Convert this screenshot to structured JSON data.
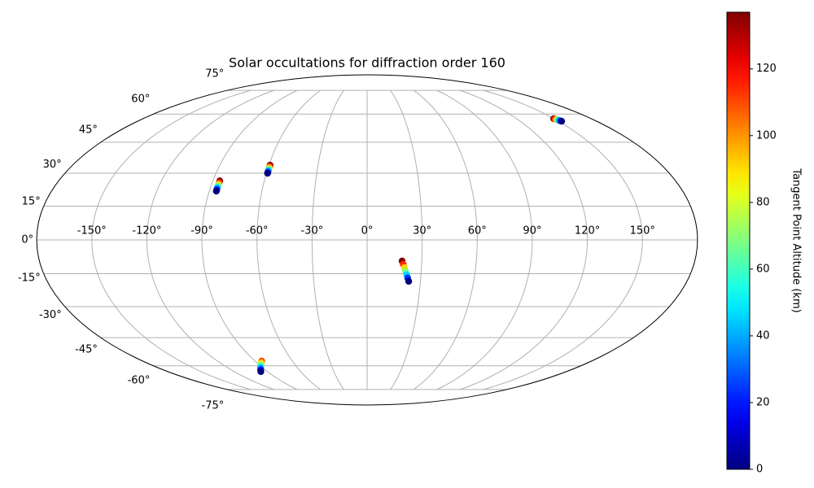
{
  "chart_data": {
    "type": "scatter",
    "projection": "mollweide",
    "title": "Solar occultations for diffraction order 160",
    "colorbar_label": "Tangent Point Altitude (km)",
    "colormap": "jet",
    "grid": true,
    "x": [
      -86,
      -86,
      -86,
      -86,
      -86,
      -86,
      -86,
      -59.3,
      -59.3,
      -59.3,
      -59.3,
      -59.3,
      -59.3,
      -59.3,
      149.8,
      150.3,
      150.7,
      151.2,
      151.6,
      152.1,
      152.5,
      19.2,
      19.9,
      20.6,
      21.3,
      22.0,
      22.7,
      23.4,
      -84.5,
      -86.4,
      -88.3,
      -90.3,
      -92.2,
      -94.1,
      -96.0
    ],
    "y": [
      26.5,
      25.7,
      24.9,
      24.2,
      23.4,
      22.6,
      21.8,
      33.8,
      33.2,
      32.5,
      31.9,
      31.3,
      30.6,
      30.0,
      57.4,
      57.2,
      56.9,
      56.7,
      56.5,
      56.2,
      56.0,
      -9.3,
      -10.8,
      -12.3,
      -13.9,
      -15.4,
      -16.9,
      -18.4,
      -57.3,
      -58.3,
      -59.3,
      -60.4,
      -61.4,
      -62.4,
      -63.4
    ],
    "c": [
      137,
      114,
      91,
      68,
      46,
      23,
      0,
      137,
      114,
      91,
      68,
      46,
      23,
      0,
      137,
      114,
      91,
      68,
      46,
      23,
      0,
      137,
      114,
      91,
      68,
      46,
      23,
      0,
      110,
      92,
      73,
      55,
      37,
      18,
      0
    ],
    "xticks": [
      {
        "value": -150,
        "label": "-150°"
      },
      {
        "value": -120,
        "label": "-120°"
      },
      {
        "value": -90,
        "label": "-90°"
      },
      {
        "value": -60,
        "label": "-60°"
      },
      {
        "value": -30,
        "label": "-30°"
      },
      {
        "value": 0,
        "label": "0°"
      },
      {
        "value": 30,
        "label": "30°"
      },
      {
        "value": 60,
        "label": "60°"
      },
      {
        "value": 90,
        "label": "90°"
      },
      {
        "value": 120,
        "label": "120°"
      },
      {
        "value": 150,
        "label": "150°"
      }
    ],
    "yticks": [
      {
        "value": -75,
        "label": "-75°"
      },
      {
        "value": -60,
        "label": "-60°"
      },
      {
        "value": -45,
        "label": "-45°"
      },
      {
        "value": -30,
        "label": "-30°"
      },
      {
        "value": -15,
        "label": "-15°"
      },
      {
        "value": 0,
        "label": "0°"
      },
      {
        "value": 15,
        "label": "15°"
      },
      {
        "value": 30,
        "label": "30°"
      },
      {
        "value": 45,
        "label": "45°"
      },
      {
        "value": 60,
        "label": "60°"
      },
      {
        "value": 75,
        "label": "75°"
      }
    ],
    "xlim": [
      -180,
      180
    ],
    "ylim": [
      -90,
      90
    ],
    "clim": [
      0,
      137
    ],
    "cticks": [
      0,
      20,
      40,
      60,
      80,
      100,
      120
    ]
  }
}
